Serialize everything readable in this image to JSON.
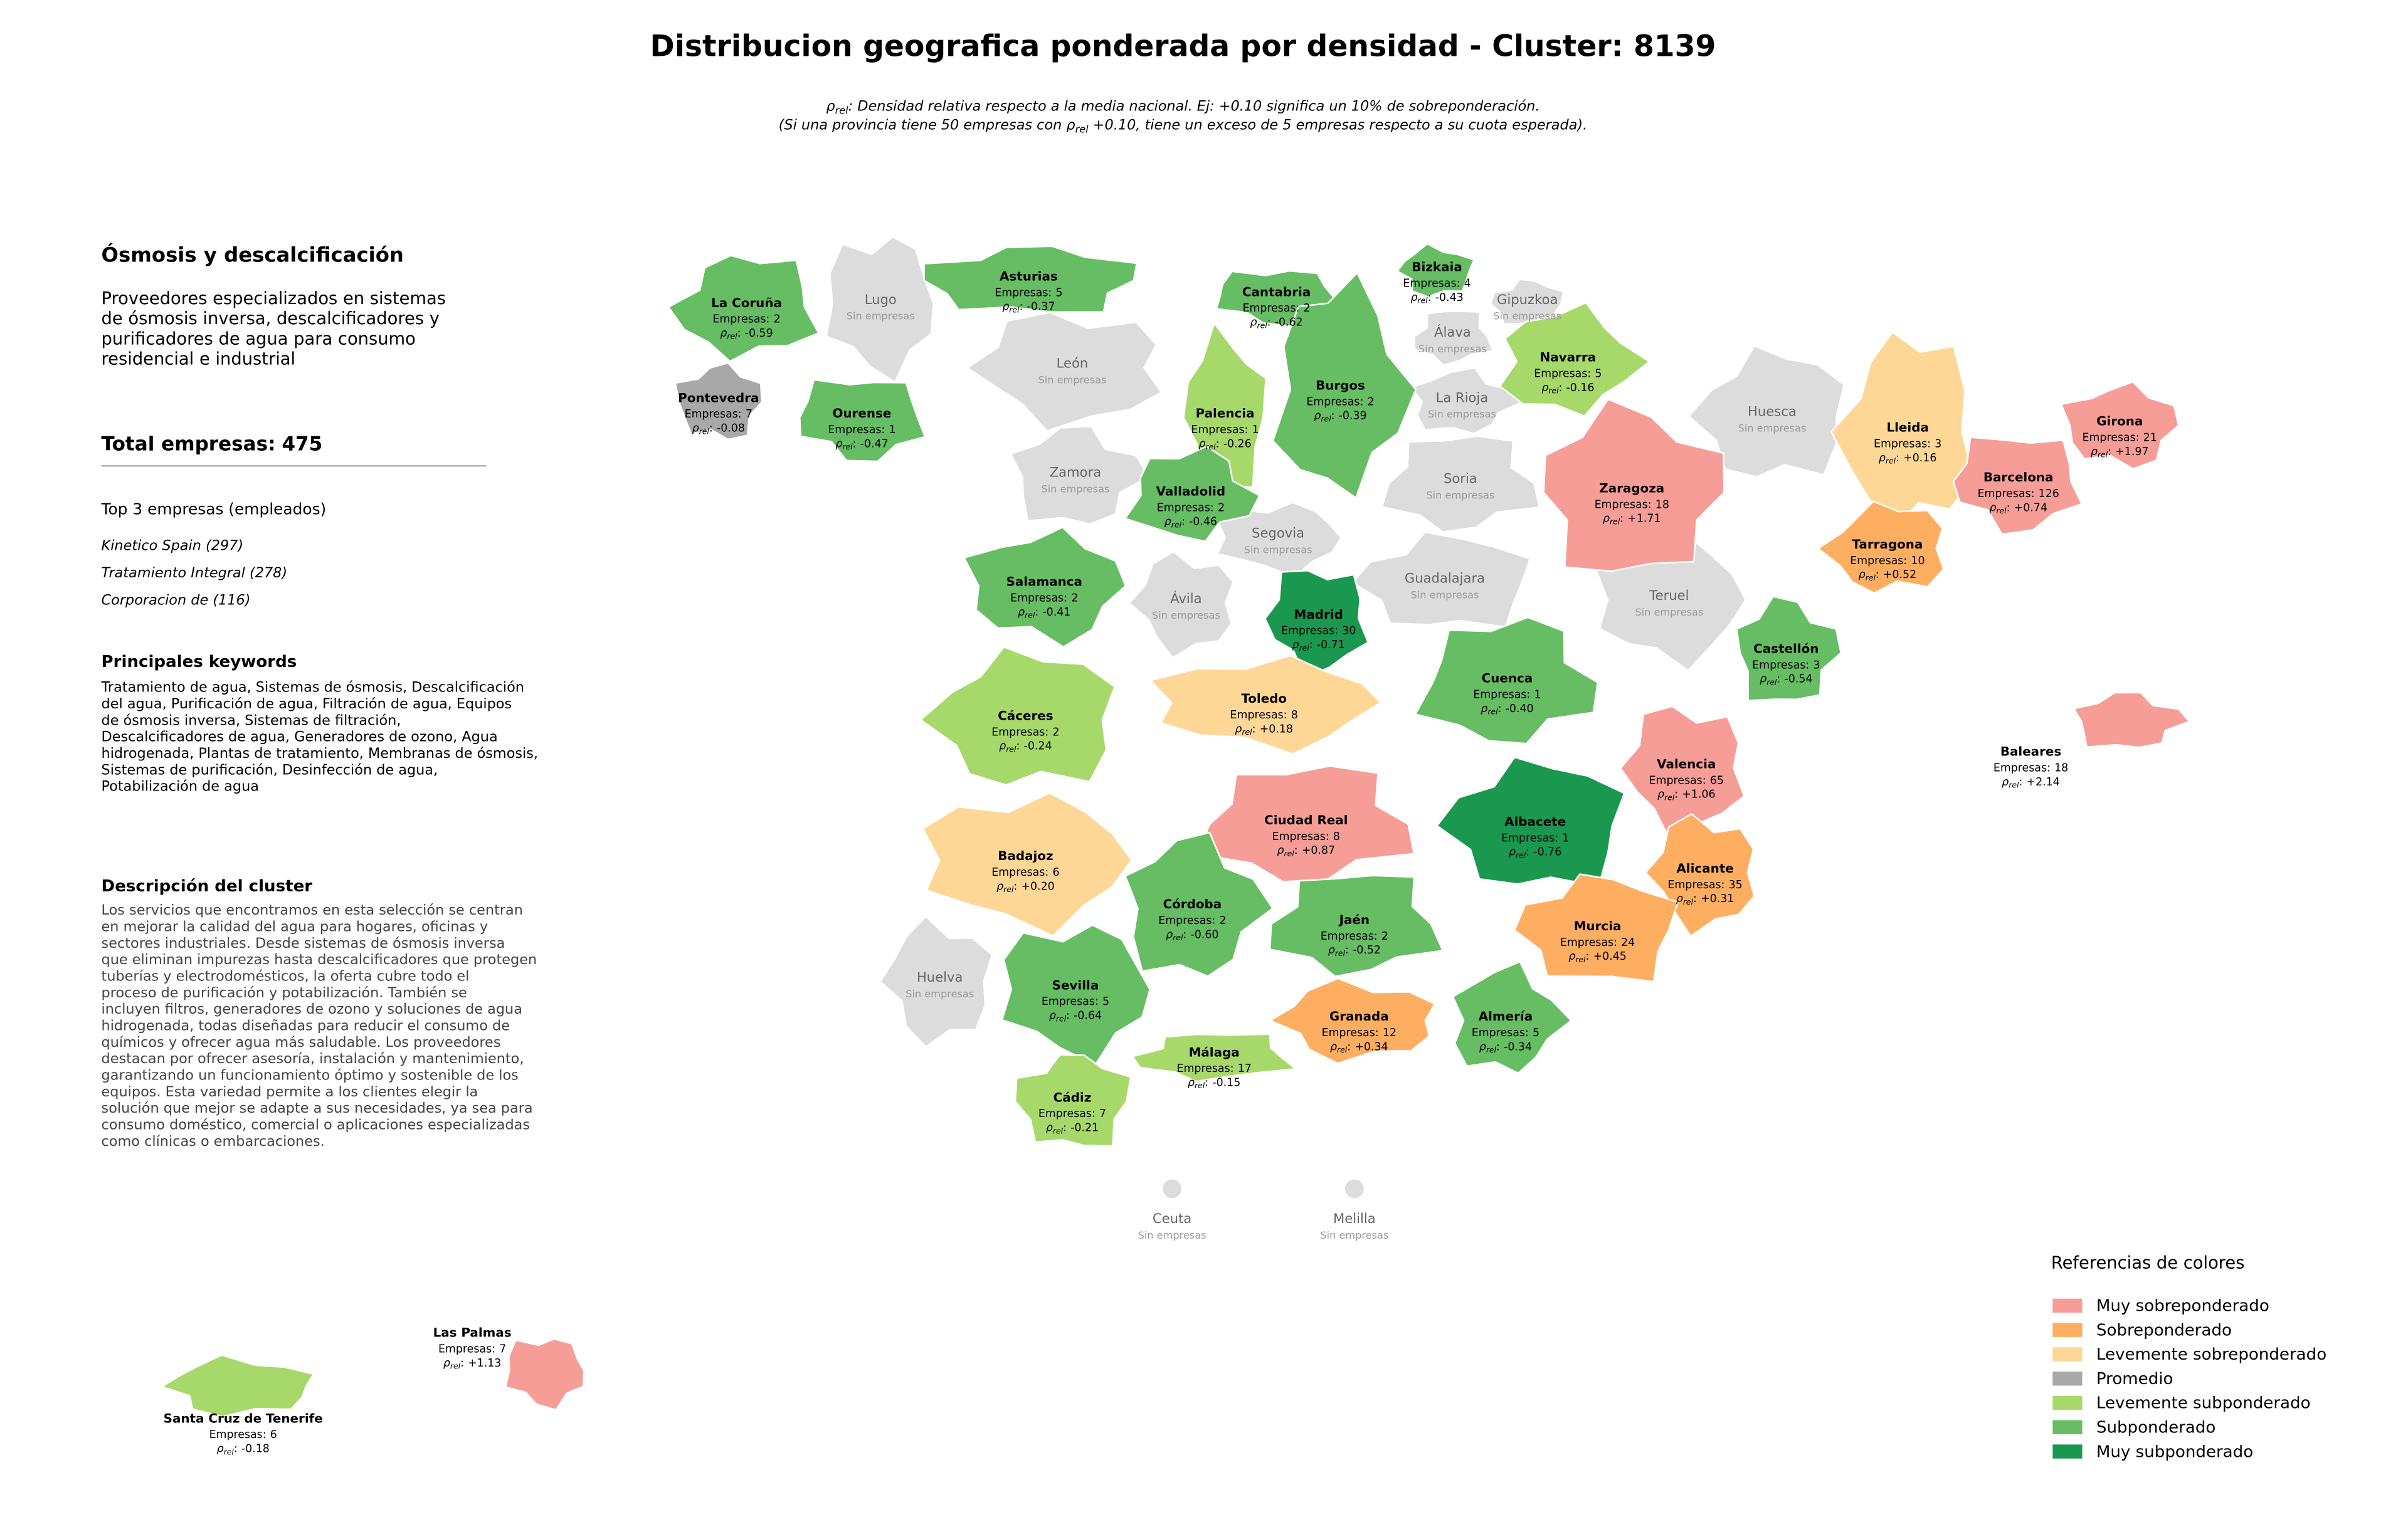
{
  "header": {
    "title": "Distribucion geografica ponderada por densidad - Cluster: 8139",
    "subtitle_1": {
      "symbol": "ρ",
      "sub": "rel",
      "text": ": Densidad relativa respecto a la media nacional. Ej: +0.10 significa un 10% de sobreponderación."
    },
    "subtitle_2": {
      "before": "(Si una provincia tiene 50 empresas con ",
      "symbol": "ρ",
      "sub": "rel",
      "after": " +0.10, tiene un exceso de 5 empresas respecto a su cuota esperada)."
    }
  },
  "panel": {
    "cluster_name": "Ósmosis y descalcificación",
    "summary": [
      "Proveedores especializados en sistemas",
      "de ósmosis inversa, descalcificadores y",
      "purificadores de agua para consumo",
      "residencial e industrial"
    ],
    "total_label": "Total empresas:",
    "total": 475,
    "top_heading": "Top 3 empresas (empleados)",
    "top": [
      "Kinetico Spain (297)",
      "Tratamiento Integral (278)",
      "Corporacion de (116)"
    ],
    "keywords_heading": "Principales keywords",
    "keywords": [
      "Tratamiento de agua, Sistemas de ósmosis, Descalcificación",
      "del agua, Purificación de agua, Filtración de agua, Equipos",
      "de ósmosis inversa, Sistemas de filtración,",
      "Descalcificadores de agua, Generadores de ozono, Agua",
      "hidrogenada, Plantas de tratamiento, Membranas de ósmosis,",
      "Sistemas de purificación, Desinfección de agua,",
      "Potabilización de agua"
    ],
    "description_heading": "Descripción del cluster",
    "description": [
      "Los servicios que encontramos en esta selección se centran",
      "en mejorar la calidad del agua para hogares, oficinas y",
      "sectores industriales. Desde sistemas de ósmosis inversa",
      "que eliminan impurezas hasta descalcificadores que protegen",
      "tuberías y electrodomésticos, la oferta cubre todo el",
      "proceso de purificación y potabilización. También se",
      "incluyen filtros, generadores de ozono y soluciones de agua",
      "hidrogenada, todas diseñadas para reducir el consumo de",
      "químicos y ofrecer agua más saludable. Los proveedores",
      "destacan por ofrecer asesoría, instalación y mantenimiento,",
      "garantizando un funcionamiento óptimo y sostenible de los",
      "equipos. Esta variedad permite a los clientes elegir la",
      "solución que mejor se adapte a sus necesidades, ya sea para",
      "consumo doméstico, comercial o aplicaciones especializadas",
      "como clínicas o embarcaciones."
    ]
  },
  "labels": {
    "companies": "Empresas:",
    "rho": "ρ",
    "rho_sub": "rel",
    "rho_colon": ":",
    "no_companies": "Sin empresas",
    "no_companies_color": "#dcdcdc"
  },
  "legend": {
    "title": "Referencias de colores",
    "items": [
      {
        "name": "Muy sobreponderado",
        "color": "#f59d96"
      },
      {
        "name": "Sobreponderado",
        "color": "#fdae61"
      },
      {
        "name": "Levemente sobreponderado",
        "color": "#fed796"
      },
      {
        "name": "Promedio",
        "color": "#a8a8a8"
      },
      {
        "name": "Levemente subponderado",
        "color": "#a6d96a"
      },
      {
        "name": "Subponderado",
        "color": "#66bd63"
      },
      {
        "name": "Muy subponderado",
        "color": "#1a9850"
      }
    ]
  },
  "provinces": [
    {
      "name": "Huesca"
    },
    {
      "name": "Teruel"
    },
    {
      "name": "León"
    },
    {
      "name": "Zamora"
    },
    {
      "name": "Soria"
    },
    {
      "name": "Guadalajara"
    },
    {
      "name": "Segovia"
    },
    {
      "name": "Ávila"
    },
    {
      "name": "La Rioja"
    },
    {
      "name": "Álava"
    },
    {
      "name": "Gipuzkoa"
    },
    {
      "name": "Lugo"
    },
    {
      "name": "Huelva"
    },
    {
      "name": "Ceuta"
    },
    {
      "name": "Melilla"
    },
    {
      "name": "Asturias",
      "companies": 5,
      "rho": "-0.37",
      "category": 5
    },
    {
      "name": "Cantabria",
      "companies": 2,
      "rho": "-0.62",
      "category": 5
    },
    {
      "name": "Bizkaia",
      "companies": 4,
      "rho": "-0.43",
      "category": 5
    },
    {
      "name": "Navarra",
      "companies": 5,
      "rho": "-0.16",
      "category": 4
    },
    {
      "name": "La Coruña",
      "companies": 2,
      "rho": "-0.59",
      "category": 5
    },
    {
      "name": "Pontevedra",
      "companies": 7,
      "rho": "-0.08",
      "category": 3
    },
    {
      "name": "Ourense",
      "companies": 1,
      "rho": "-0.47",
      "category": 5
    },
    {
      "name": "Palencia",
      "companies": 1,
      "rho": "-0.26",
      "category": 4
    },
    {
      "name": "Burgos",
      "companies": 2,
      "rho": "-0.39",
      "category": 5
    },
    {
      "name": "Lleida",
      "companies": 3,
      "rho": "+0.16",
      "category": 2
    },
    {
      "name": "Girona",
      "companies": 21,
      "rho": "+1.97",
      "category": 0
    },
    {
      "name": "Barcelona",
      "companies": 126,
      "rho": "+0.74",
      "category": 0
    },
    {
      "name": "Zaragoza",
      "companies": 18,
      "rho": "+1.71",
      "category": 0
    },
    {
      "name": "Valladolid",
      "companies": 2,
      "rho": "-0.46",
      "category": 5
    },
    {
      "name": "Tarragona",
      "companies": 10,
      "rho": "+0.52",
      "category": 1
    },
    {
      "name": "Salamanca",
      "companies": 2,
      "rho": "-0.41",
      "category": 5
    },
    {
      "name": "Madrid",
      "companies": 30,
      "rho": "-0.71",
      "category": 6
    },
    {
      "name": "Castellón",
      "companies": 3,
      "rho": "-0.54",
      "category": 5
    },
    {
      "name": "Cuenca",
      "companies": 1,
      "rho": "-0.40",
      "category": 5
    },
    {
      "name": "Cáceres",
      "companies": 2,
      "rho": "-0.24",
      "category": 4
    },
    {
      "name": "Toledo",
      "companies": 8,
      "rho": "+0.18",
      "category": 2
    },
    {
      "name": "Valencia",
      "companies": 65,
      "rho": "+1.06",
      "category": 0
    },
    {
      "name": "Baleares",
      "companies": 18,
      "rho": "+2.14",
      "category": 0
    },
    {
      "name": "Ciudad Real",
      "companies": 8,
      "rho": "+0.87",
      "category": 0
    },
    {
      "name": "Albacete",
      "companies": 1,
      "rho": "-0.76",
      "category": 6
    },
    {
      "name": "Badajoz",
      "companies": 6,
      "rho": "+0.20",
      "category": 2
    },
    {
      "name": "Alicante",
      "companies": 35,
      "rho": "+0.31",
      "category": 1
    },
    {
      "name": "Córdoba",
      "companies": 2,
      "rho": "-0.60",
      "category": 5
    },
    {
      "name": "Jaén",
      "companies": 2,
      "rho": "-0.52",
      "category": 5
    },
    {
      "name": "Murcia",
      "companies": 24,
      "rho": "+0.45",
      "category": 1
    },
    {
      "name": "Sevilla",
      "companies": 5,
      "rho": "-0.64",
      "category": 5
    },
    {
      "name": "Granada",
      "companies": 12,
      "rho": "+0.34",
      "category": 1
    },
    {
      "name": "Almería",
      "companies": 5,
      "rho": "-0.34",
      "category": 5
    },
    {
      "name": "Málaga",
      "companies": 17,
      "rho": "-0.15",
      "category": 4
    },
    {
      "name": "Cádiz",
      "companies": 7,
      "rho": "-0.21",
      "category": 4
    },
    {
      "name": "Las Palmas",
      "companies": 7,
      "rho": "+1.13",
      "category": 0
    },
    {
      "name": "Santa Cruz de Tenerife",
      "companies": 6,
      "rho": "-0.18",
      "category": 4
    }
  ]
}
